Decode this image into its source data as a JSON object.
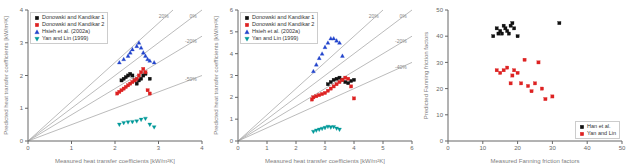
{
  "chart_data": [
    {
      "type": "scatter",
      "xlabel": "Measured heat transfer coefficients [kW/m²K]",
      "ylabel": "Predicted heat transfer coefficients [kW/m²K]",
      "xlim": [
        0,
        4
      ],
      "ylim": [
        0,
        4
      ],
      "xticks": [
        0,
        1,
        2,
        3,
        4
      ],
      "yticks": [
        0,
        1,
        2,
        3,
        4
      ],
      "legend": "upper left",
      "reference_lines": [
        {
          "slope": 1.2,
          "label": "20%"
        },
        {
          "slope": 1.0,
          "label": "0%"
        },
        {
          "slope": 0.8,
          "label": "-20%"
        },
        {
          "slope": 0.5,
          "label": "-50%"
        }
      ],
      "series": [
        {
          "name": "Donowski and Kandikar 1",
          "color": "#111111",
          "marker": "square",
          "x": [
            2.15,
            2.2,
            2.25,
            2.3,
            2.35,
            2.4,
            2.45,
            2.5,
            2.55,
            2.6,
            2.65,
            2.7,
            2.8
          ],
          "y": [
            1.85,
            1.9,
            1.95,
            2.0,
            2.05,
            2.0,
            1.85,
            1.75,
            1.85,
            1.9,
            2.0,
            2.05,
            1.9
          ]
        },
        {
          "name": "Donowski and Kandikar 2",
          "color": "#dd2222",
          "marker": "square",
          "x": [
            2.05,
            2.1,
            2.15,
            2.2,
            2.25,
            2.3,
            2.35,
            2.4,
            2.45,
            2.5,
            2.55,
            2.6,
            2.65,
            2.7,
            2.75,
            2.8
          ],
          "y": [
            1.45,
            1.5,
            1.55,
            1.6,
            1.65,
            1.7,
            1.75,
            1.8,
            1.85,
            1.9,
            2.0,
            2.1,
            2.2,
            2.1,
            1.55,
            1.45
          ]
        },
        {
          "name": "Hsieh et al. (2002a)",
          "color": "#2244cc",
          "marker": "triangle_up",
          "x": [
            2.1,
            2.2,
            2.3,
            2.35,
            2.4,
            2.5,
            2.55,
            2.6,
            2.65,
            2.7,
            2.75,
            2.8,
            2.9
          ],
          "y": [
            2.4,
            2.5,
            2.6,
            2.7,
            2.8,
            2.9,
            3.0,
            2.85,
            2.7,
            2.6,
            2.5,
            2.45,
            2.4
          ]
        },
        {
          "name": "Yan and Lin (1999)",
          "color": "#009999",
          "marker": "triangle_down",
          "x": [
            2.1,
            2.2,
            2.3,
            2.4,
            2.5,
            2.6,
            2.7,
            2.8,
            2.9
          ],
          "y": [
            0.5,
            0.55,
            0.57,
            0.58,
            0.6,
            0.65,
            0.68,
            0.5,
            0.42
          ]
        }
      ]
    },
    {
      "type": "scatter",
      "xlabel": "Measured heat transfer coefficients [kW/m²K]",
      "ylabel": "Predicted heat transfer coefficients [kW/m²K]",
      "xlim": [
        0,
        6
      ],
      "ylim": [
        0,
        6
      ],
      "xticks": [
        0,
        1,
        2,
        3,
        4,
        5,
        6
      ],
      "yticks": [
        0,
        1,
        2,
        3,
        4,
        5,
        6
      ],
      "legend": "upper left",
      "reference_lines": [
        {
          "slope": 1.2,
          "label": "20%"
        },
        {
          "slope": 1.0,
          "label": "0%"
        },
        {
          "slope": 0.8,
          "label": "-20%"
        },
        {
          "slope": 0.6,
          "label": "-40%"
        }
      ],
      "series": [
        {
          "name": "Donowski and Kandikar 1",
          "color": "#111111",
          "marker": "square",
          "x": [
            3.1,
            3.2,
            3.3,
            3.4,
            3.5,
            3.6,
            3.7,
            3.8,
            3.9,
            4.0
          ],
          "y": [
            2.6,
            2.7,
            2.8,
            2.85,
            2.9,
            2.8,
            2.7,
            2.65,
            2.75,
            2.8
          ]
        },
        {
          "name": "Donowski and Kandikar 2",
          "color": "#dd2222",
          "marker": "square",
          "x": [
            2.55,
            2.6,
            2.7,
            2.8,
            2.9,
            3.0,
            3.1,
            3.2,
            3.3,
            3.4,
            3.5,
            3.6,
            3.7,
            3.8,
            3.9,
            4.0
          ],
          "y": [
            1.9,
            2.0,
            2.05,
            2.1,
            2.15,
            2.2,
            2.3,
            2.4,
            2.5,
            2.6,
            2.7,
            2.8,
            2.9,
            2.85,
            2.5,
            1.95
          ]
        },
        {
          "name": "Hsieh et al. (2002a)",
          "color": "#2244cc",
          "marker": "triangle_up",
          "x": [
            2.6,
            2.7,
            2.8,
            2.9,
            3.0,
            3.1,
            3.2,
            3.3,
            3.4,
            3.5,
            3.6
          ],
          "y": [
            3.2,
            3.5,
            3.8,
            4.0,
            4.3,
            4.5,
            4.7,
            4.7,
            4.6,
            4.5,
            3.9
          ]
        },
        {
          "name": "Yan and Lin (1999)",
          "color": "#009999",
          "marker": "triangle_down",
          "x": [
            2.6,
            2.7,
            2.8,
            2.9,
            3.0,
            3.1,
            3.2,
            3.3,
            3.4,
            3.5
          ],
          "y": [
            0.42,
            0.48,
            0.52,
            0.56,
            0.6,
            0.65,
            0.62,
            0.64,
            0.57,
            0.52
          ]
        }
      ]
    },
    {
      "type": "scatter",
      "xlabel": "Measured Fanning friction factors",
      "ylabel": "Predicted Fanning friction factors",
      "xlim": [
        0,
        50
      ],
      "ylim": [
        0,
        50
      ],
      "xticks": [
        0,
        10,
        20,
        30,
        40,
        50
      ],
      "yticks": [
        0,
        10,
        20,
        30,
        40,
        50
      ],
      "legend": "lower right",
      "series": [
        {
          "name": "Han et al.",
          "color": "#111111",
          "marker": "square",
          "x": [
            13,
            14,
            14.5,
            15,
            15.5,
            16,
            16.5,
            17,
            17.5,
            18,
            18.5,
            19,
            20,
            32
          ],
          "y": [
            40,
            43,
            41,
            42,
            41,
            44,
            43,
            42,
            41,
            44,
            45,
            43,
            40,
            45
          ]
        },
        {
          "name": "Yan and Lin",
          "color": "#dd2222",
          "marker": "square",
          "x": [
            14,
            15,
            16,
            17,
            18,
            18.5,
            19,
            20,
            21,
            22,
            23,
            24,
            25,
            26,
            27,
            28,
            30
          ],
          "y": [
            27,
            26,
            27,
            28,
            22,
            25,
            27,
            26,
            22,
            31,
            21,
            19,
            22,
            30,
            20,
            16,
            17
          ]
        }
      ]
    }
  ]
}
